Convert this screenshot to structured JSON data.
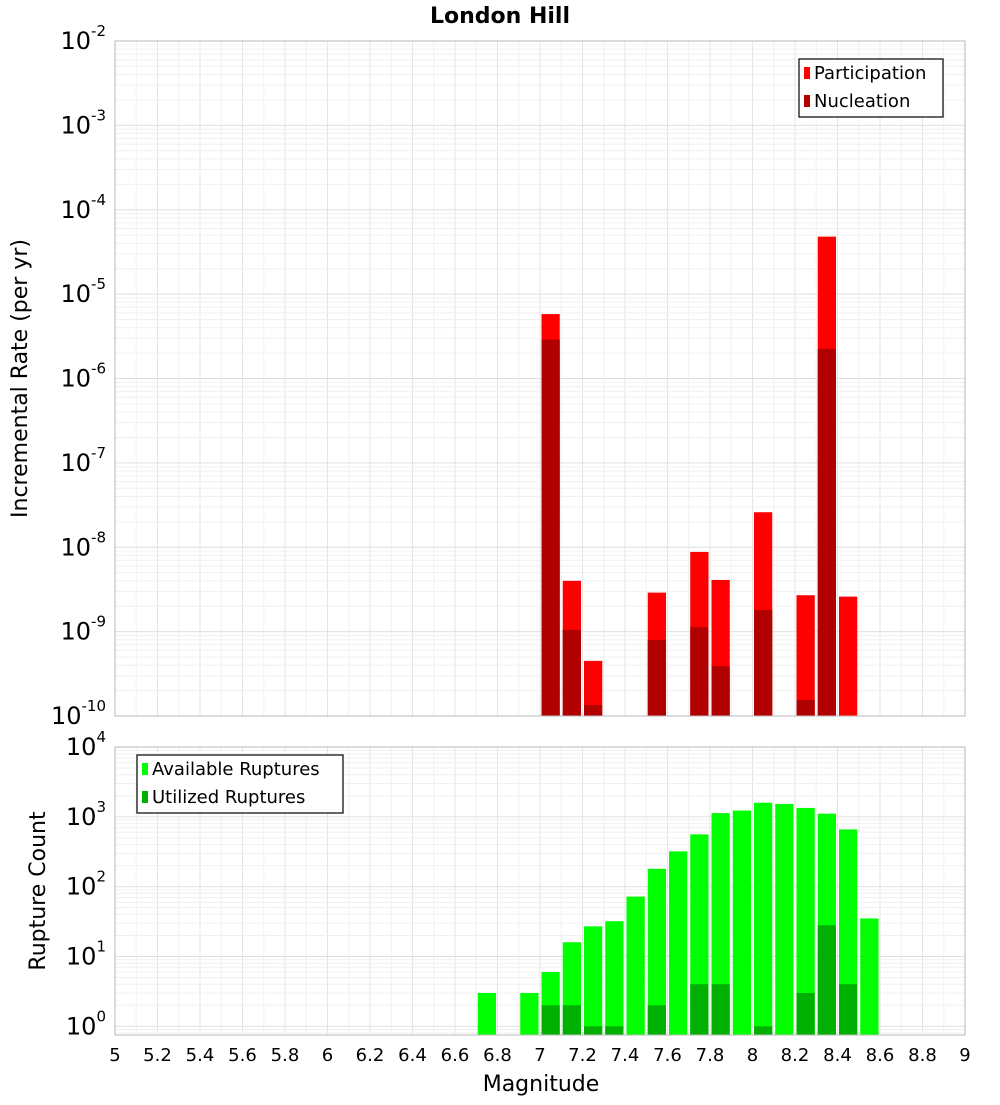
{
  "chart_data": [
    {
      "type": "bar",
      "title": "London Hill",
      "xlabel": "",
      "ylabel": "Incremental Rate (per yr)",
      "xlim": [
        5,
        9
      ],
      "ylim": [
        1e-10,
        0.01
      ],
      "yscale": "log",
      "grid": true,
      "legend_position": "top-right",
      "y_ticks": [
        {
          "base": "10",
          "exp": "-10",
          "value": 1e-10
        },
        {
          "base": "10",
          "exp": "-9",
          "value": 1e-09
        },
        {
          "base": "10",
          "exp": "-8",
          "value": 1e-08
        },
        {
          "base": "10",
          "exp": "-7",
          "value": 1e-07
        },
        {
          "base": "10",
          "exp": "-6",
          "value": 1e-06
        },
        {
          "base": "10",
          "exp": "-5",
          "value": 1e-05
        },
        {
          "base": "10",
          "exp": "-4",
          "value": 0.0001
        },
        {
          "base": "10",
          "exp": "-3",
          "value": 0.001
        },
        {
          "base": "10",
          "exp": "-2",
          "value": 0.01
        }
      ],
      "series": [
        {
          "name": "Participation",
          "color": "#ff0000",
          "x": [
            7.05,
            7.15,
            7.25,
            7.55,
            7.75,
            7.85,
            8.05,
            8.25,
            8.35,
            8.45
          ],
          "values": [
            5.8e-06,
            4e-09,
            4.5e-10,
            2.9e-09,
            8.8e-09,
            4.1e-09,
            2.6e-08,
            2.7e-09,
            4.8e-05,
            2.6e-09
          ]
        },
        {
          "name": "Nucleation",
          "color": "#b00000",
          "x": [
            7.05,
            7.15,
            7.25,
            7.55,
            7.75,
            7.85,
            8.05,
            8.25,
            8.35
          ],
          "values": [
            2.9e-06,
            1.05e-09,
            1.35e-10,
            8e-10,
            1.13e-09,
            3.9e-10,
            1.8e-09,
            1.55e-10,
            2.25e-06
          ]
        }
      ]
    },
    {
      "type": "bar",
      "title": "",
      "xlabel": "Magnitude",
      "ylabel": "Rupture Count",
      "xlim": [
        5,
        9
      ],
      "ylim": [
        0.75,
        10000
      ],
      "yscale": "log",
      "grid": true,
      "legend_position": "top-left",
      "x_ticks": [
        "5",
        "5.2",
        "5.4",
        "5.6",
        "5.8",
        "6",
        "6.2",
        "6.4",
        "6.6",
        "6.8",
        "7",
        "7.2",
        "7.4",
        "7.6",
        "7.8",
        "8",
        "8.2",
        "8.4",
        "8.6",
        "8.8",
        "9"
      ],
      "y_ticks": [
        {
          "base": "10",
          "exp": "0",
          "value": 1
        },
        {
          "base": "10",
          "exp": "1",
          "value": 10
        },
        {
          "base": "10",
          "exp": "2",
          "value": 100
        },
        {
          "base": "10",
          "exp": "3",
          "value": 1000
        },
        {
          "base": "10",
          "exp": "4",
          "value": 10000
        }
      ],
      "series": [
        {
          "name": "Available Ruptures",
          "color": "#00ff00",
          "x": [
            6.75,
            6.95,
            7.05,
            7.15,
            7.25,
            7.35,
            7.45,
            7.55,
            7.65,
            7.75,
            7.85,
            7.95,
            8.05,
            8.15,
            8.25,
            8.35,
            8.45,
            8.55
          ],
          "values": [
            3,
            3,
            6,
            16,
            27,
            32,
            72,
            180,
            320,
            560,
            1130,
            1230,
            1590,
            1530,
            1340,
            1110,
            660,
            35
          ]
        },
        {
          "name": "Utilized Ruptures",
          "color": "#00b000",
          "x": [
            7.05,
            7.15,
            7.25,
            7.35,
            7.55,
            7.75,
            7.85,
            8.05,
            8.25,
            8.35,
            8.45
          ],
          "values": [
            2,
            2,
            1,
            1,
            2,
            4,
            4,
            1,
            3,
            28,
            4
          ]
        }
      ]
    }
  ]
}
